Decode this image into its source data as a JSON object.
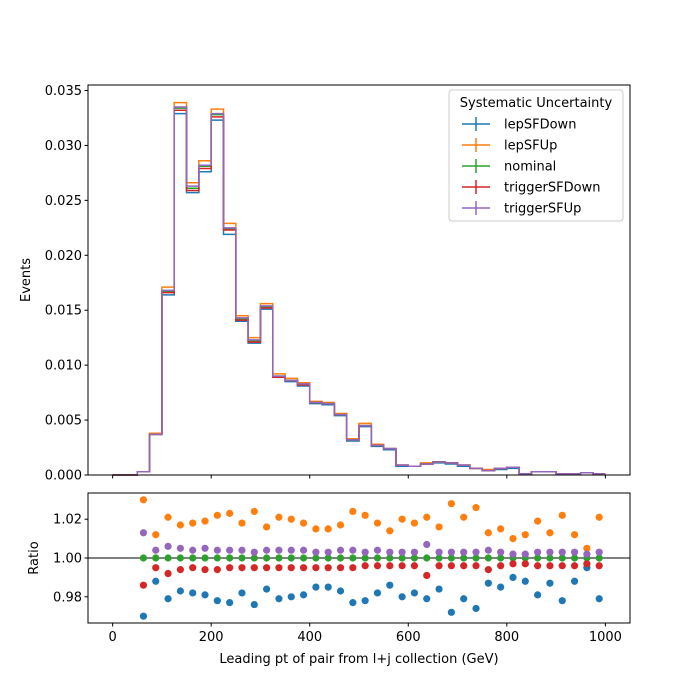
{
  "chart_data": [
    {
      "type": "line",
      "xlabel": "",
      "ylabel": "Events",
      "xlim": [
        -50,
        1050
      ],
      "ylim": [
        0,
        0.0355
      ],
      "xticks": [
        0,
        200,
        400,
        600,
        800,
        1000
      ],
      "yticks": [
        0.0,
        0.005,
        0.01,
        0.015,
        0.02,
        0.025,
        0.03,
        0.035
      ],
      "ytick_labels": [
        "0.000",
        "0.005",
        "0.010",
        "0.015",
        "0.020",
        "0.025",
        "0.030",
        "0.035"
      ],
      "legend": {
        "title": "Systematic Uncertainty",
        "placement": "top-right"
      },
      "bin_edges": [
        0,
        25,
        50,
        75,
        100,
        125,
        150,
        175,
        200,
        225,
        250,
        275,
        300,
        325,
        350,
        375,
        400,
        425,
        450,
        475,
        500,
        525,
        550,
        575,
        600,
        625,
        650,
        675,
        700,
        725,
        750,
        775,
        800,
        825,
        850,
        875,
        900,
        925,
        950,
        975,
        1000
      ],
      "series": [
        {
          "name": "lepSFDown",
          "color": "#1f77b4",
          "values": [
            0,
            0,
            0.0003,
            0.0037,
            0.0164,
            0.0329,
            0.0257,
            0.0276,
            0.0323,
            0.0219,
            0.014,
            0.012,
            0.0151,
            0.0089,
            0.0085,
            0.0081,
            0.0065,
            0.0064,
            0.0054,
            0.0031,
            0.0044,
            0.0026,
            0.0023,
            0.0008,
            0.0008,
            0.001,
            0.0011,
            0.001,
            0.0008,
            0.0006,
            0.0004,
            0.0005,
            0.0006,
            0.0001,
            0.0003,
            0.0003,
            0.0001,
            0.0001,
            0.0002,
            0.0001
          ]
        },
        {
          "name": "lepSFUp",
          "color": "#ff7f0e",
          "values": [
            0,
            0,
            0.0003,
            0.0038,
            0.0171,
            0.0339,
            0.0266,
            0.0286,
            0.0333,
            0.0229,
            0.0145,
            0.0125,
            0.0156,
            0.0092,
            0.0088,
            0.0084,
            0.0067,
            0.0066,
            0.0056,
            0.0033,
            0.0047,
            0.0028,
            0.0024,
            0.0009,
            0.0008,
            0.0011,
            0.0012,
            0.0011,
            0.0009,
            0.0006,
            0.0005,
            0.0006,
            0.0007,
            0.0001,
            0.0003,
            0.0003,
            0.0001,
            0.0001,
            0.0002,
            0.0001
          ]
        },
        {
          "name": "nominal",
          "color": "#2ca02c",
          "values": [
            0,
            0,
            0.0003,
            0.0037,
            0.0167,
            0.0334,
            0.0261,
            0.0281,
            0.0328,
            0.0224,
            0.0142,
            0.0122,
            0.0153,
            0.009,
            0.0086,
            0.0082,
            0.0066,
            0.0065,
            0.0055,
            0.0032,
            0.0045,
            0.0027,
            0.0024,
            0.0009,
            0.0008,
            0.001,
            0.0012,
            0.0011,
            0.0009,
            0.0006,
            0.0004,
            0.0006,
            0.0007,
            0.0001,
            0.0003,
            0.0003,
            0.0001,
            0.0001,
            0.0002,
            0.0001
          ]
        },
        {
          "name": "triggerSFDown",
          "color": "#d62728",
          "values": [
            0,
            0,
            0.0003,
            0.0037,
            0.0166,
            0.0332,
            0.0259,
            0.0279,
            0.0326,
            0.0223,
            0.0141,
            0.0121,
            0.0152,
            0.0089,
            0.0086,
            0.0082,
            0.0066,
            0.0065,
            0.0055,
            0.0032,
            0.0045,
            0.0027,
            0.0024,
            0.0009,
            0.0008,
            0.001,
            0.0012,
            0.0011,
            0.0009,
            0.0006,
            0.0004,
            0.0006,
            0.0007,
            0.0001,
            0.0003,
            0.0003,
            0.0001,
            0.0001,
            0.0002,
            0.0001
          ]
        },
        {
          "name": "triggerSFUp",
          "color": "#9467bd",
          "values": [
            0,
            0,
            0.0003,
            0.0037,
            0.0168,
            0.0335,
            0.0263,
            0.0282,
            0.0329,
            0.0225,
            0.0143,
            0.0123,
            0.0154,
            0.009,
            0.0086,
            0.0083,
            0.0066,
            0.0065,
            0.0055,
            0.0032,
            0.0045,
            0.0027,
            0.0024,
            0.0009,
            0.0008,
            0.001,
            0.0012,
            0.0011,
            0.0009,
            0.0006,
            0.0004,
            0.0006,
            0.0007,
            0.0001,
            0.0003,
            0.0003,
            0.0001,
            0.0001,
            0.0002,
            0.0001
          ]
        }
      ]
    },
    {
      "type": "scatter",
      "xlabel": "Leading pt of pair from l+j collection (GeV)",
      "ylabel": "Ratio",
      "xlim": [
        -50,
        1050
      ],
      "ylim": [
        0.9665,
        1.0335
      ],
      "xticks": [
        0,
        200,
        400,
        600,
        800,
        1000
      ],
      "yticks": [
        0.98,
        1.0,
        1.02
      ],
      "ytick_labels": [
        "0.98",
        "1.00",
        "1.02"
      ],
      "reference_line": 1.0,
      "x": [
        62.5,
        87.5,
        112.5,
        137.5,
        162.5,
        187.5,
        212.5,
        237.5,
        262.5,
        287.5,
        312.5,
        337.5,
        362.5,
        387.5,
        412.5,
        437.5,
        462.5,
        487.5,
        512.5,
        537.5,
        562.5,
        587.5,
        612.5,
        637.5,
        662.5,
        687.5,
        712.5,
        737.5,
        762.5,
        787.5,
        812.5,
        837.5,
        862.5,
        887.5,
        912.5,
        937.5,
        962.5,
        987.5
      ],
      "series": [
        {
          "name": "lepSFDown",
          "color": "#1f77b4",
          "values": [
            0.97,
            0.988,
            0.979,
            0.983,
            0.982,
            0.981,
            0.978,
            0.977,
            0.982,
            0.976,
            0.984,
            0.979,
            0.98,
            0.981,
            0.985,
            0.985,
            0.983,
            0.977,
            0.978,
            0.982,
            0.986,
            0.98,
            0.982,
            0.979,
            0.984,
            0.972,
            0.979,
            0.974,
            0.987,
            0.985,
            0.99,
            0.988,
            0.981,
            0.987,
            0.978,
            0.988,
            0.995,
            0.979
          ]
        },
        {
          "name": "lepSFUp",
          "color": "#ff7f0e",
          "values": [
            1.03,
            1.012,
            1.021,
            1.017,
            1.018,
            1.019,
            1.022,
            1.023,
            1.018,
            1.024,
            1.016,
            1.021,
            1.02,
            1.018,
            1.015,
            1.015,
            1.017,
            1.024,
            1.022,
            1.018,
            1.014,
            1.02,
            1.018,
            1.021,
            1.016,
            1.028,
            1.021,
            1.026,
            1.013,
            1.015,
            1.01,
            1.012,
            1.019,
            1.013,
            1.022,
            1.012,
            1.005,
            1.021
          ]
        },
        {
          "name": "nominal",
          "color": "#2ca02c",
          "values": [
            1.0,
            1.0,
            1.0,
            1.0,
            1.0,
            1.0,
            1.0,
            1.0,
            1.0,
            1.0,
            1.0,
            1.0,
            1.0,
            1.0,
            1.0,
            1.0,
            1.0,
            1.0,
            1.0,
            1.0,
            1.0,
            1.0,
            1.0,
            1.0,
            1.0,
            1.0,
            1.0,
            1.0,
            1.0,
            1.0,
            1.0,
            1.0,
            1.0,
            1.0,
            1.0,
            1.0,
            1.0,
            1.0
          ]
        },
        {
          "name": "triggerSFDown",
          "color": "#d62728",
          "values": [
            0.986,
            0.995,
            0.992,
            0.994,
            0.995,
            0.994,
            0.994,
            0.995,
            0.995,
            0.995,
            0.995,
            0.995,
            0.995,
            0.995,
            0.995,
            0.995,
            0.995,
            0.995,
            0.996,
            0.996,
            0.996,
            0.996,
            0.996,
            0.991,
            0.996,
            0.996,
            0.996,
            0.996,
            0.994,
            0.996,
            0.997,
            0.997,
            0.996,
            0.996,
            0.996,
            0.996,
            0.997,
            0.996
          ]
        },
        {
          "name": "triggerSFUp",
          "color": "#9467bd",
          "values": [
            1.013,
            1.004,
            1.006,
            1.005,
            1.004,
            1.005,
            1.004,
            1.004,
            1.004,
            1.003,
            1.004,
            1.004,
            1.004,
            1.004,
            1.003,
            1.003,
            1.004,
            1.004,
            1.003,
            1.004,
            1.003,
            1.003,
            1.003,
            1.007,
            1.003,
            1.003,
            1.003,
            1.003,
            1.004,
            1.003,
            1.002,
            1.002,
            1.003,
            1.003,
            1.003,
            1.003,
            1.002,
            1.003
          ]
        }
      ]
    }
  ]
}
